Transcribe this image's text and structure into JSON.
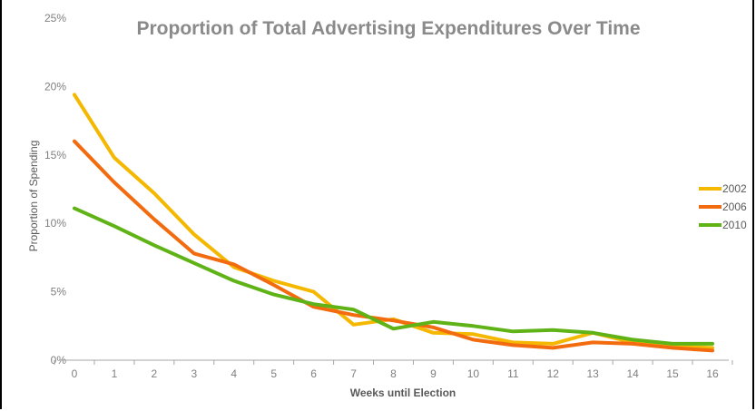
{
  "chart_data": {
    "type": "line",
    "title": "Proportion of Total Advertising Expenditures Over Time",
    "xlabel": "Weeks until Election",
    "ylabel": "Proportion of Spending",
    "x": [
      0,
      1,
      2,
      3,
      4,
      5,
      6,
      7,
      8,
      9,
      10,
      11,
      12,
      13,
      14,
      15,
      16
    ],
    "x_tick_labels": [
      "0",
      "1",
      "2",
      "3",
      "4",
      "5",
      "6",
      "7",
      "8",
      "9",
      "10",
      "11",
      "12",
      "13",
      "14",
      "15",
      "16"
    ],
    "y_ticks": [
      0,
      5,
      10,
      15,
      20,
      25
    ],
    "y_tick_labels": [
      "0%",
      "5%",
      "10%",
      "15%",
      "20%",
      "25%"
    ],
    "ylim": [
      0,
      25
    ],
    "grid": false,
    "legend_position": "right",
    "series": [
      {
        "name": "2002",
        "color": "#f5b800",
        "values": [
          19.4,
          14.8,
          12.2,
          9.2,
          6.8,
          5.8,
          5.0,
          2.6,
          3.0,
          2.0,
          1.9,
          1.3,
          1.2,
          2.0,
          1.3,
          1.0,
          0.9
        ]
      },
      {
        "name": "2006",
        "color": "#f26b0f",
        "values": [
          16.0,
          13.0,
          10.3,
          7.8,
          7.0,
          5.5,
          3.9,
          3.3,
          2.9,
          2.4,
          1.5,
          1.1,
          0.9,
          1.3,
          1.2,
          0.9,
          0.7
        ]
      },
      {
        "name": "2010",
        "color": "#5fb317",
        "values": [
          11.1,
          9.8,
          8.4,
          7.1,
          5.8,
          4.8,
          4.1,
          3.7,
          2.3,
          2.8,
          2.5,
          2.1,
          2.2,
          2.0,
          1.5,
          1.2,
          1.2
        ]
      }
    ]
  }
}
